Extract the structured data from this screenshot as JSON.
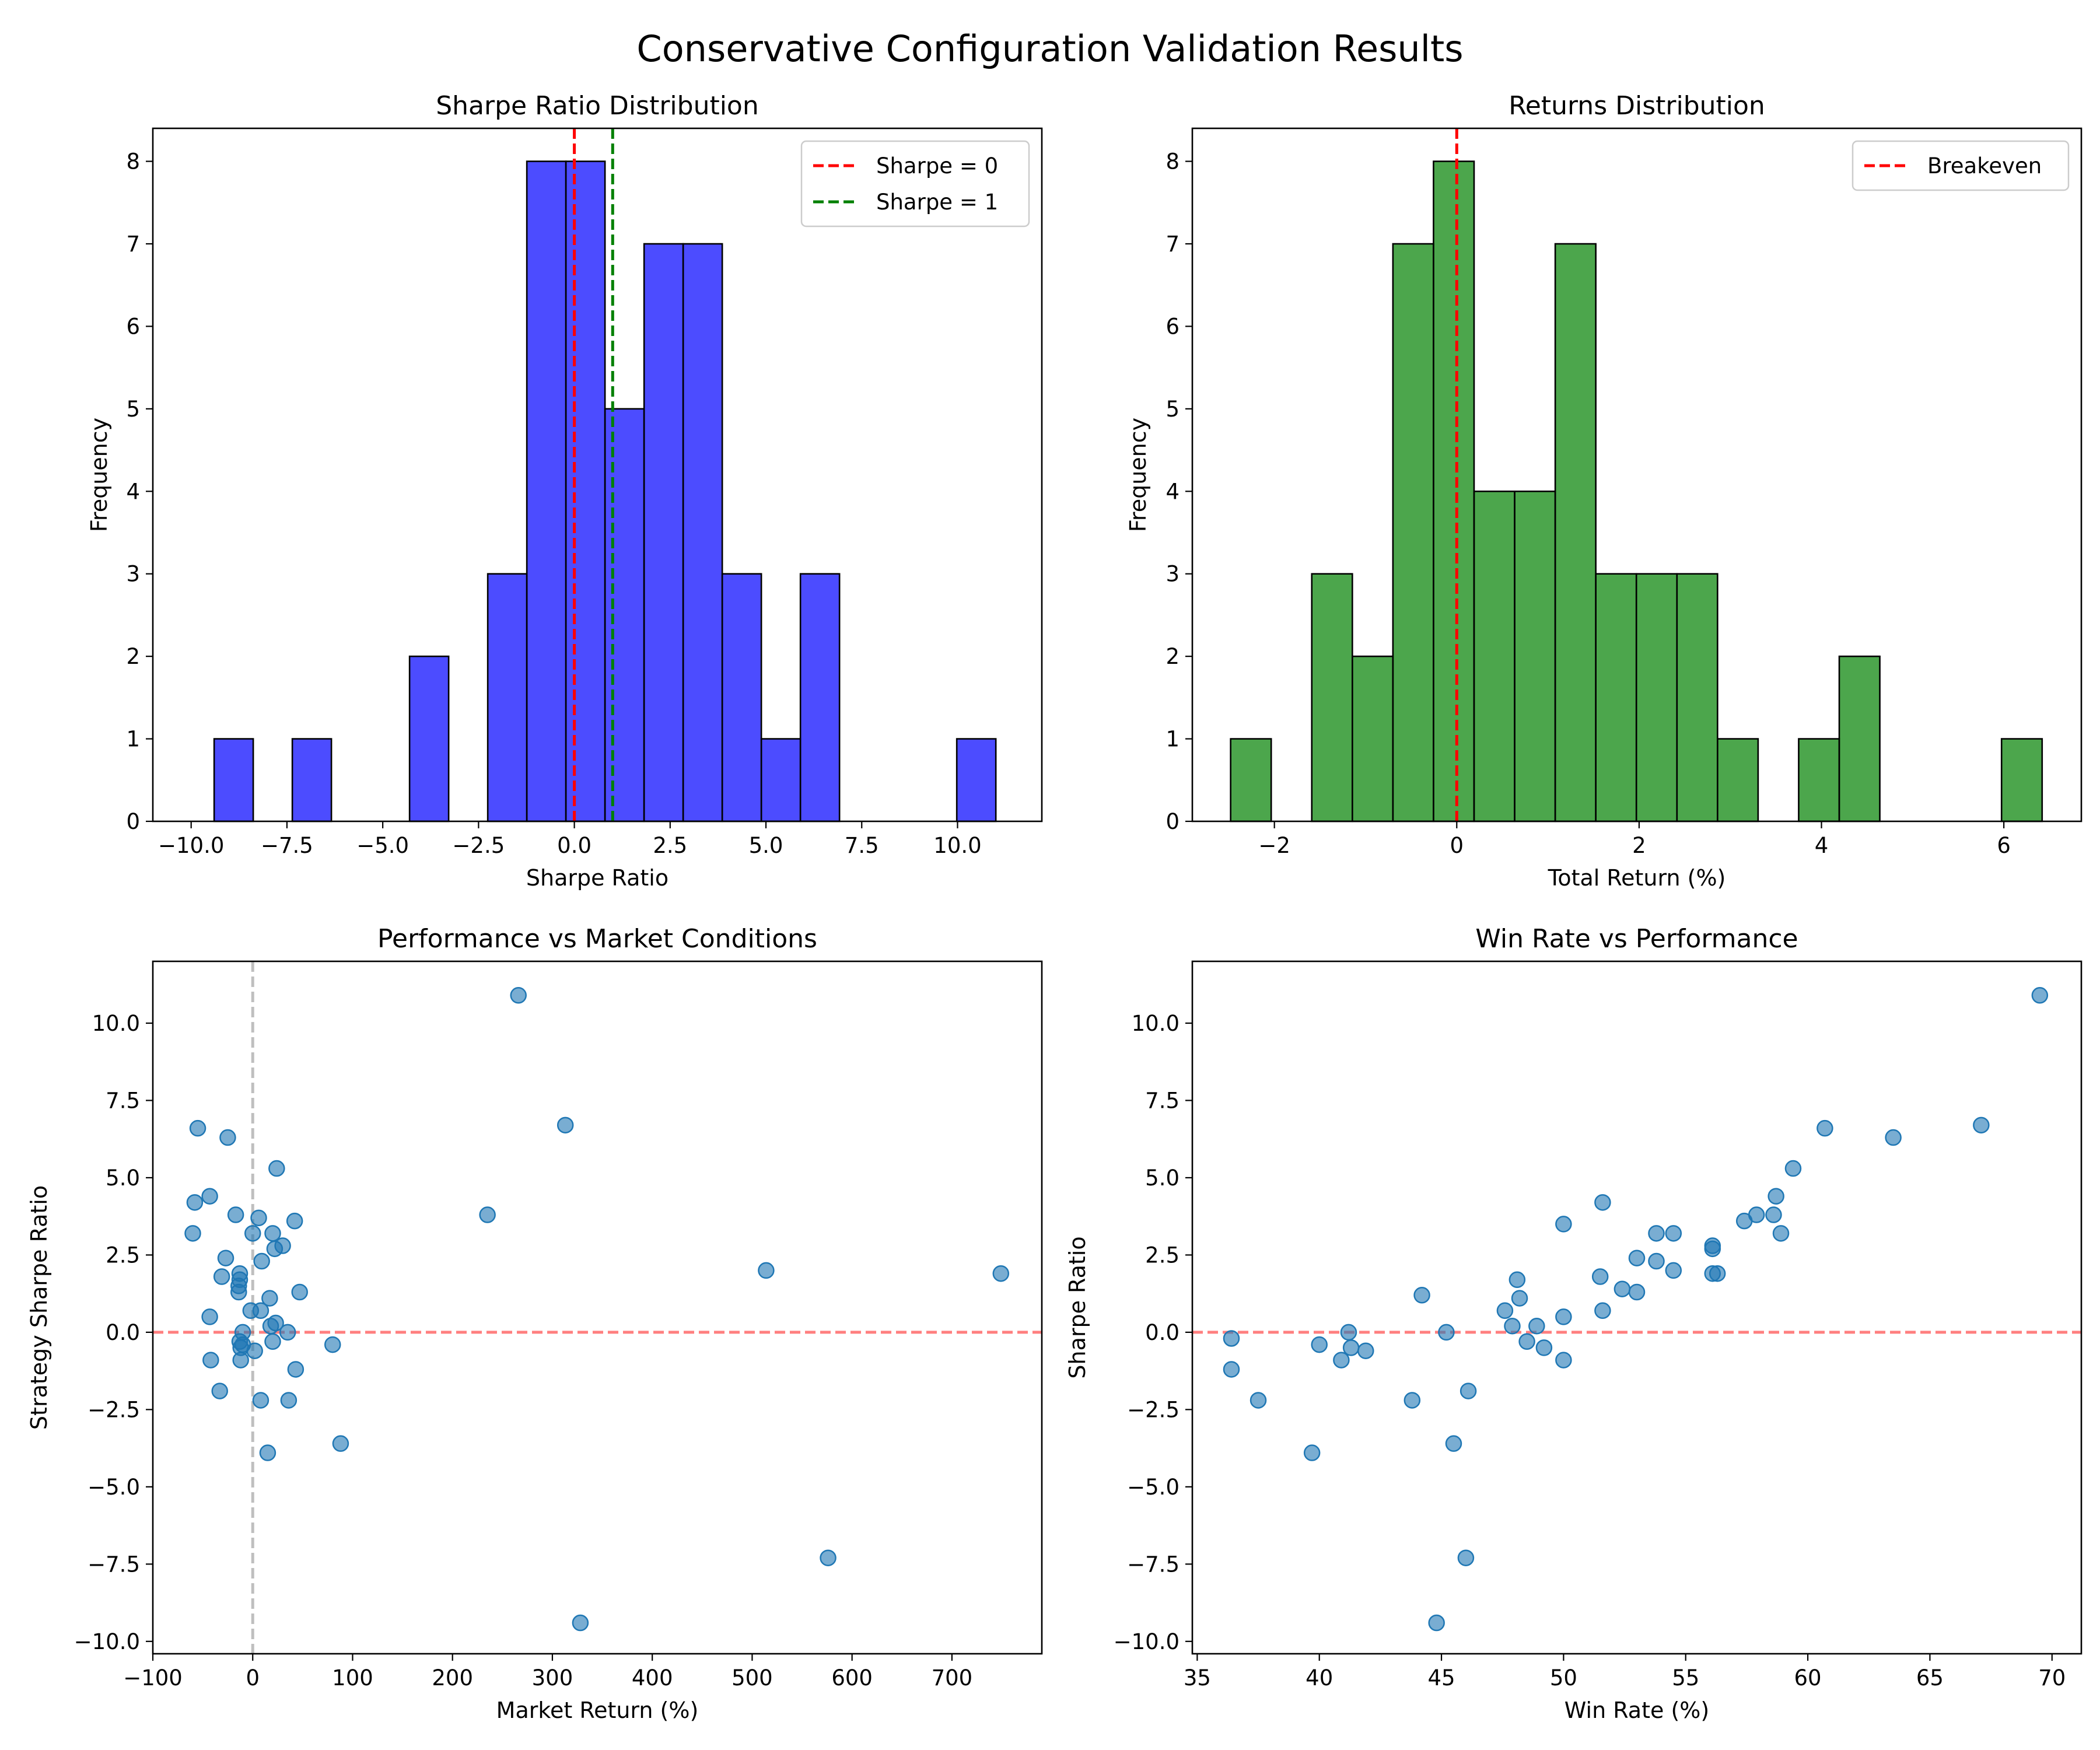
{
  "title": "Conservative Configuration Validation Results",
  "chart_data": [
    {
      "type": "bar",
      "subtype": "histogram",
      "title": "Sharpe Ratio Distribution",
      "xlabel": "Sharpe Ratio",
      "ylabel": "Frequency",
      "xlim": [
        -11,
        12.2
      ],
      "ylim": [
        0,
        8.4
      ],
      "xticks": [
        -10.0,
        -7.5,
        -5.0,
        -2.5,
        0.0,
        2.5,
        5.0,
        7.5,
        10.0
      ],
      "xtick_labels": [
        "−10.0",
        "−7.5",
        "−5.0",
        "−2.5",
        "0.0",
        "2.5",
        "5.0",
        "7.5",
        "10.0"
      ],
      "yticks": [
        0,
        1,
        2,
        3,
        4,
        5,
        6,
        7,
        8
      ],
      "ytick_labels": [
        "0",
        "1",
        "2",
        "3",
        "4",
        "5",
        "6",
        "7",
        "8"
      ],
      "bar_color": "#0000ff",
      "bins": [
        {
          "x0": -9.4,
          "x1": -8.38,
          "count": 1
        },
        {
          "x0": -8.38,
          "x1": -7.36,
          "count": 0
        },
        {
          "x0": -7.36,
          "x1": -6.34,
          "count": 1
        },
        {
          "x0": -6.34,
          "x1": -5.32,
          "count": 0
        },
        {
          "x0": -5.32,
          "x1": -4.3,
          "count": 0
        },
        {
          "x0": -4.3,
          "x1": -3.28,
          "count": 2
        },
        {
          "x0": -3.28,
          "x1": -2.26,
          "count": 0
        },
        {
          "x0": -2.26,
          "x1": -1.24,
          "count": 3
        },
        {
          "x0": -1.24,
          "x1": -0.22,
          "count": 8
        },
        {
          "x0": -0.22,
          "x1": 0.8,
          "count": 8
        },
        {
          "x0": 0.8,
          "x1": 1.82,
          "count": 5
        },
        {
          "x0": 1.82,
          "x1": 2.84,
          "count": 7
        },
        {
          "x0": 2.84,
          "x1": 3.86,
          "count": 7
        },
        {
          "x0": 3.86,
          "x1": 4.88,
          "count": 3
        },
        {
          "x0": 4.88,
          "x1": 5.9,
          "count": 1
        },
        {
          "x0": 5.9,
          "x1": 6.92,
          "count": 3
        },
        {
          "x0": 6.92,
          "x1": 7.94,
          "count": 0
        },
        {
          "x0": 7.94,
          "x1": 8.96,
          "count": 0
        },
        {
          "x0": 8.96,
          "x1": 9.98,
          "count": 0
        },
        {
          "x0": 9.98,
          "x1": 11.0,
          "count": 1
        }
      ],
      "vlines": [
        {
          "x": 0,
          "color": "#ff0000",
          "label": "Sharpe = 0"
        },
        {
          "x": 1,
          "color": "#008000",
          "label": "Sharpe = 1"
        }
      ],
      "legend": [
        "Sharpe = 0",
        "Sharpe = 1"
      ],
      "legend_loc": "upper right",
      "grid": false
    },
    {
      "type": "bar",
      "subtype": "histogram",
      "title": "Returns Distribution",
      "xlabel": "Total Return (%)",
      "ylabel": "Frequency",
      "xlim": [
        -2.9,
        6.85
      ],
      "ylim": [
        0,
        8.4
      ],
      "xticks": [
        -2,
        0,
        2,
        4,
        6
      ],
      "xtick_labels": [
        "−2",
        "0",
        "2",
        "4",
        "6"
      ],
      "yticks": [
        0,
        1,
        2,
        3,
        4,
        5,
        6,
        7,
        8
      ],
      "ytick_labels": [
        "0",
        "1",
        "2",
        "3",
        "4",
        "5",
        "6",
        "7",
        "8"
      ],
      "bar_color": "#008000",
      "bins": [
        {
          "x0": -2.48,
          "x1": -2.035,
          "count": 1
        },
        {
          "x0": -2.035,
          "x1": -1.59,
          "count": 0
        },
        {
          "x0": -1.59,
          "x1": -1.145,
          "count": 3
        },
        {
          "x0": -1.145,
          "x1": -0.7,
          "count": 2
        },
        {
          "x0": -0.7,
          "x1": -0.255,
          "count": 7
        },
        {
          "x0": -0.255,
          "x1": 0.19,
          "count": 8
        },
        {
          "x0": 0.19,
          "x1": 0.635,
          "count": 4
        },
        {
          "x0": 0.635,
          "x1": 1.08,
          "count": 4
        },
        {
          "x0": 1.08,
          "x1": 1.525,
          "count": 7
        },
        {
          "x0": 1.525,
          "x1": 1.97,
          "count": 3
        },
        {
          "x0": 1.97,
          "x1": 2.415,
          "count": 3
        },
        {
          "x0": 2.415,
          "x1": 2.86,
          "count": 3
        },
        {
          "x0": 2.86,
          "x1": 3.305,
          "count": 1
        },
        {
          "x0": 3.305,
          "x1": 3.75,
          "count": 0
        },
        {
          "x0": 3.75,
          "x1": 4.195,
          "count": 1
        },
        {
          "x0": 4.195,
          "x1": 4.64,
          "count": 2
        },
        {
          "x0": 4.64,
          "x1": 5.085,
          "count": 0
        },
        {
          "x0": 5.085,
          "x1": 5.53,
          "count": 0
        },
        {
          "x0": 5.53,
          "x1": 5.975,
          "count": 0
        },
        {
          "x0": 5.975,
          "x1": 6.42,
          "count": 1
        }
      ],
      "vlines": [
        {
          "x": 0,
          "color": "#ff0000",
          "label": "Breakeven"
        }
      ],
      "legend": [
        "Breakeven"
      ],
      "legend_loc": "upper right",
      "grid": false
    },
    {
      "type": "scatter",
      "title": "Performance vs Market Conditions",
      "xlabel": "Market Return (%)",
      "ylabel": "Strategy Sharpe Ratio",
      "xlim": [
        -100,
        790
      ],
      "ylim": [
        -10.4,
        12.0
      ],
      "xticks": [
        -100,
        0,
        100,
        200,
        300,
        400,
        500,
        600,
        700
      ],
      "xtick_labels": [
        "−100",
        "0",
        "100",
        "200",
        "300",
        "400",
        "500",
        "600",
        "700"
      ],
      "yticks": [
        -10.0,
        -7.5,
        -5.0,
        -2.5,
        0.0,
        2.5,
        5.0,
        7.5,
        10.0
      ],
      "ytick_labels": [
        "−10.0",
        "−7.5",
        "−5.0",
        "−2.5",
        "0.0",
        "2.5",
        "5.0",
        "7.5",
        "10.0"
      ],
      "point_color": "#1f77b4",
      "hline": {
        "y": 0,
        "color": "#ff0000"
      },
      "vline": {
        "x": 0,
        "color": "#808080"
      },
      "points": [
        [
          -60,
          3.2
        ],
        [
          -58,
          4.2
        ],
        [
          -55,
          6.6
        ],
        [
          -43,
          4.4
        ],
        [
          -43,
          0.5
        ],
        [
          -42,
          -0.9
        ],
        [
          -33,
          -1.9
        ],
        [
          -31,
          1.8
        ],
        [
          -27,
          2.4
        ],
        [
          -25,
          6.3
        ],
        [
          -17,
          3.8
        ],
        [
          -14,
          1.3
        ],
        [
          -14,
          1.5
        ],
        [
          -13,
          1.7
        ],
        [
          -13,
          1.9
        ],
        [
          -13,
          -0.3
        ],
        [
          -12,
          -0.5
        ],
        [
          -12,
          -0.9
        ],
        [
          -10,
          0.0
        ],
        [
          -10,
          -0.4
        ],
        [
          -2,
          0.7
        ],
        [
          0,
          3.2
        ],
        [
          2,
          -0.6
        ],
        [
          6,
          3.7
        ],
        [
          8,
          0.7
        ],
        [
          8,
          -2.2
        ],
        [
          9,
          2.3
        ],
        [
          15,
          -3.9
        ],
        [
          17,
          1.1
        ],
        [
          18,
          0.2
        ],
        [
          20,
          -0.3
        ],
        [
          20,
          3.2
        ],
        [
          22,
          2.7
        ],
        [
          23,
          0.3
        ],
        [
          24,
          5.3
        ],
        [
          30,
          2.8
        ],
        [
          35,
          0.0
        ],
        [
          36,
          -2.2
        ],
        [
          42,
          3.6
        ],
        [
          43,
          -1.2
        ],
        [
          47,
          1.3
        ],
        [
          80,
          -0.4
        ],
        [
          88,
          -3.6
        ],
        [
          235,
          3.8
        ],
        [
          266,
          10.9
        ],
        [
          313,
          6.7
        ],
        [
          328,
          -9.4
        ],
        [
          514,
          2.0
        ],
        [
          576,
          -7.3
        ],
        [
          749,
          1.9
        ]
      ],
      "grid": false
    },
    {
      "type": "scatter",
      "title": "Win Rate vs Performance",
      "xlabel": "Win Rate (%)",
      "ylabel": "Sharpe Ratio",
      "xlim": [
        34.8,
        71.2
      ],
      "ylim": [
        -10.4,
        12.0
      ],
      "xticks": [
        35,
        40,
        45,
        50,
        55,
        60,
        65,
        70
      ],
      "xtick_labels": [
        "35",
        "40",
        "45",
        "50",
        "55",
        "60",
        "65",
        "70"
      ],
      "yticks": [
        -10.0,
        -7.5,
        -5.0,
        -2.5,
        0.0,
        2.5,
        5.0,
        7.5,
        10.0
      ],
      "ytick_labels": [
        "−10.0",
        "−7.5",
        "−5.0",
        "−2.5",
        "0.0",
        "2.5",
        "5.0",
        "7.5",
        "10.0"
      ],
      "point_color": "#1f77b4",
      "hline": {
        "y": 0,
        "color": "#ff0000"
      },
      "points": [
        [
          36.4,
          -0.2
        ],
        [
          36.4,
          -1.2
        ],
        [
          37.5,
          -2.2
        ],
        [
          39.7,
          -3.9
        ],
        [
          40.0,
          -0.4
        ],
        [
          40.9,
          -0.9
        ],
        [
          41.2,
          0.0
        ],
        [
          41.3,
          -0.5
        ],
        [
          41.9,
          -0.6
        ],
        [
          43.8,
          -2.2
        ],
        [
          44.2,
          1.2
        ],
        [
          44.8,
          -9.4
        ],
        [
          45.2,
          0.0
        ],
        [
          45.5,
          -3.6
        ],
        [
          46.0,
          -7.3
        ],
        [
          46.1,
          -1.9
        ],
        [
          47.6,
          0.7
        ],
        [
          47.9,
          0.2
        ],
        [
          48.1,
          1.7
        ],
        [
          48.2,
          1.1
        ],
        [
          48.5,
          -0.3
        ],
        [
          48.9,
          0.2
        ],
        [
          49.2,
          -0.5
        ],
        [
          50.0,
          3.5
        ],
        [
          50.0,
          0.5
        ],
        [
          50.0,
          -0.9
        ],
        [
          51.5,
          1.8
        ],
        [
          51.6,
          4.2
        ],
        [
          51.6,
          0.7
        ],
        [
          52.4,
          1.4
        ],
        [
          53.0,
          2.4
        ],
        [
          53.0,
          1.3
        ],
        [
          53.8,
          3.2
        ],
        [
          53.8,
          2.3
        ],
        [
          54.5,
          3.2
        ],
        [
          54.5,
          2.0
        ],
        [
          56.1,
          2.8
        ],
        [
          56.1,
          2.7
        ],
        [
          56.1,
          1.9
        ],
        [
          56.3,
          1.9
        ],
        [
          57.4,
          3.6
        ],
        [
          57.9,
          3.8
        ],
        [
          58.6,
          3.8
        ],
        [
          58.7,
          4.4
        ],
        [
          58.9,
          3.2
        ],
        [
          59.4,
          5.3
        ],
        [
          60.7,
          6.6
        ],
        [
          63.5,
          6.3
        ],
        [
          67.1,
          6.7
        ],
        [
          69.5,
          10.9
        ]
      ],
      "grid": false
    }
  ]
}
